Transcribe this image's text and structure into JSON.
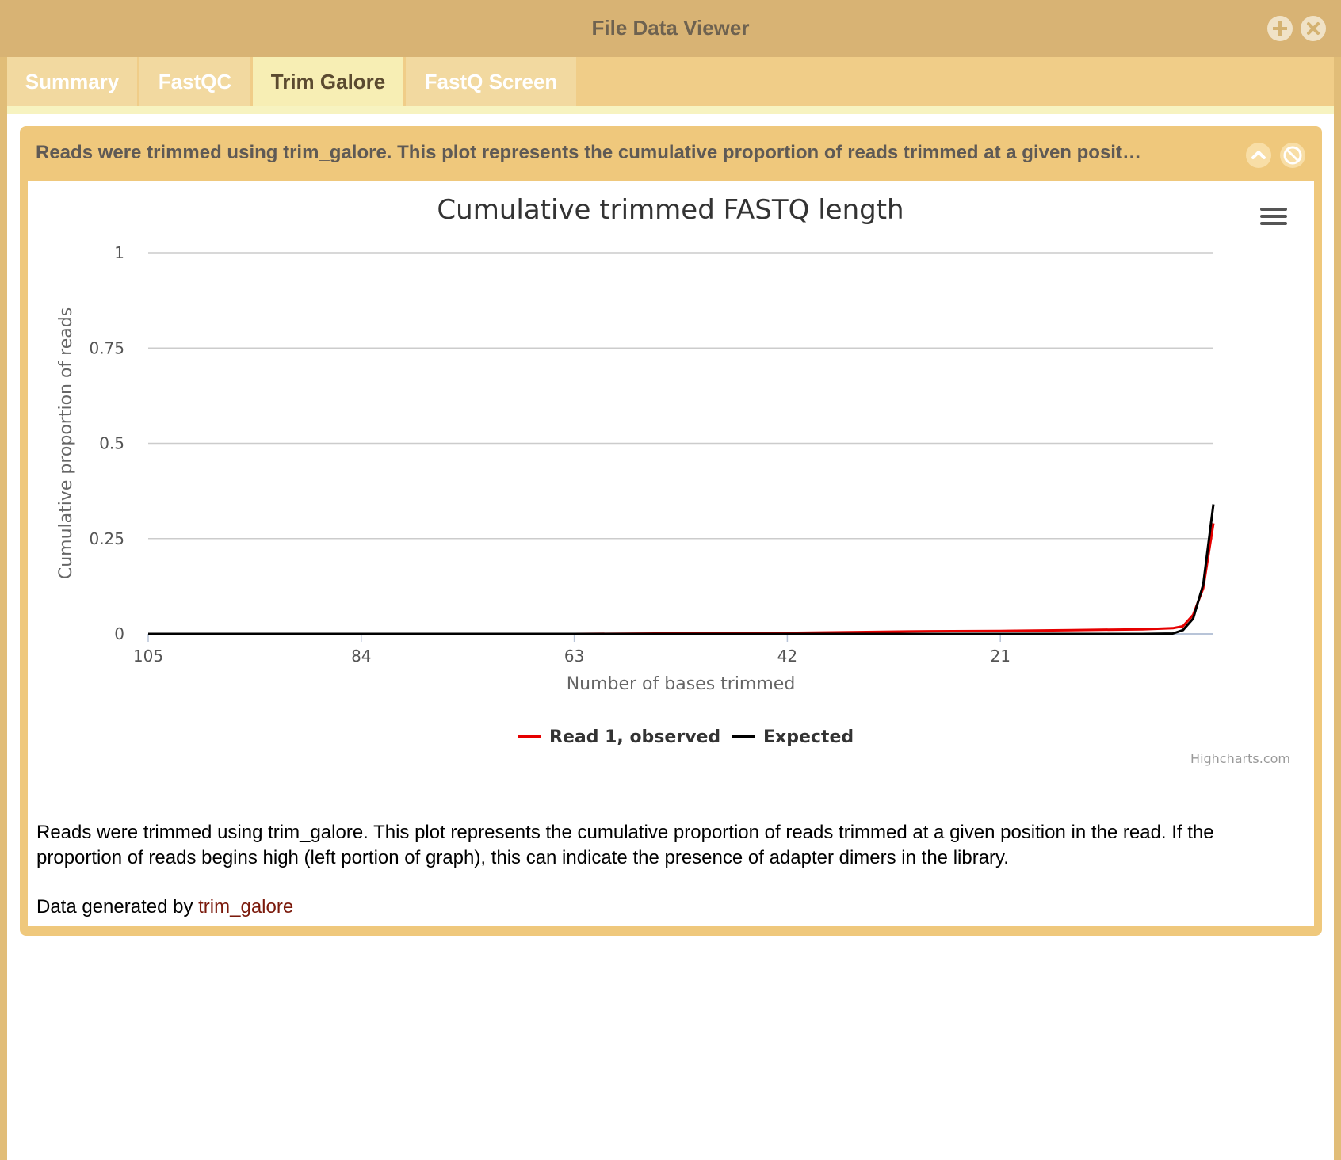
{
  "window": {
    "title": "File Data Viewer"
  },
  "tabs": [
    {
      "label": "Summary",
      "active": false
    },
    {
      "label": "FastQC",
      "active": false
    },
    {
      "label": "Trim Galore",
      "active": true
    },
    {
      "label": "FastQ Screen",
      "active": false
    }
  ],
  "panel": {
    "title": "Reads were trimmed using trim_galore. This plot represents the cumulative proportion of reads trimmed at a given posit…",
    "description": "Reads were trimmed using trim_galore. This plot represents the cumulative proportion of reads trimmed at a given position in the read. If the proportion of reads begins high (left portion of graph), this can indicate the presence of adapter dimers in the library.",
    "credit_prefix": "Data generated by ",
    "credit_link": "trim_galore"
  },
  "chart_data": {
    "type": "line",
    "title": "Cumulative trimmed FASTQ length",
    "xlabel": "Number of bases trimmed",
    "ylabel": "Cumulative proportion of reads",
    "xlim": [
      105,
      0
    ],
    "x_reversed": true,
    "ylim": [
      0,
      1
    ],
    "x_ticks": [
      105,
      84,
      63,
      42,
      21
    ],
    "y_ticks": [
      0,
      0.25,
      0.5,
      0.75,
      1
    ],
    "y_tick_labels": [
      "0",
      "0.25",
      "0.5",
      "0.75",
      "1"
    ],
    "grid": true,
    "legend_position": "bottom-center",
    "credits": "Highcharts.com",
    "series": [
      {
        "name": "Read 1, observed",
        "color": "#e60000",
        "x": [
          105,
          84,
          63,
          55,
          50,
          42,
          35,
          28,
          21,
          14,
          7,
          4,
          3,
          2,
          1,
          0
        ],
        "y": [
          0,
          0,
          0,
          0.001,
          0.002,
          0.003,
          0.005,
          0.007,
          0.008,
          0.01,
          0.012,
          0.015,
          0.02,
          0.05,
          0.12,
          0.29
        ]
      },
      {
        "name": "Expected",
        "color": "#000000",
        "x": [
          105,
          84,
          63,
          42,
          21,
          7,
          4,
          3,
          2,
          1,
          0
        ],
        "y": [
          0,
          0,
          0,
          0,
          0,
          0,
          0.001,
          0.01,
          0.04,
          0.13,
          0.34
        ]
      }
    ]
  }
}
